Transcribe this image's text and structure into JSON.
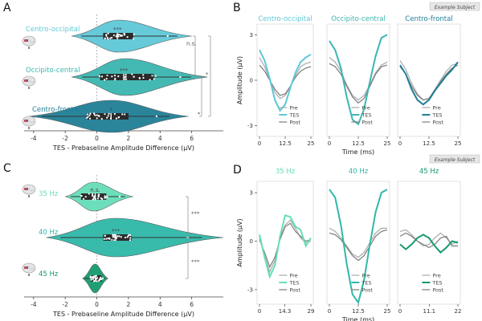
{
  "panel_letters": {
    "a": "A",
    "b": "B",
    "c": "C",
    "d": "D"
  },
  "example_badge": "Example Subject",
  "colors": {
    "centro_occipital": "#5ec8d8",
    "occipito_central": "#3bb6b0",
    "centro_frontal": "#1f7f96",
    "hz35": "#66ddb8",
    "hz40": "#2fb8a8",
    "hz45": "#159a6e",
    "pre": "#a9a9a9",
    "post": "#7b7b7b",
    "sig": "#666666"
  },
  "chart_data": [
    {
      "id": "A",
      "type": "violin",
      "xlabel": "TES - Prebaseline Amplitude Difference (µV)",
      "xlim": [
        -4.6,
        8.0
      ],
      "xticks": [
        -4,
        -2,
        0,
        2,
        4,
        6
      ],
      "groups": [
        {
          "name": "Centro-occipital",
          "color_key": "centro_occipital",
          "center": 1.4,
          "left": -1.6,
          "right": 6.0,
          "iqr": [
            0.4,
            2.3
          ],
          "median": 1.3,
          "sig": "***"
        },
        {
          "name": "Occipito-central",
          "color_key": "occipito_central",
          "center": 1.8,
          "left": -1.6,
          "right": 7.0,
          "iqr": [
            0.2,
            3.6
          ],
          "median": 1.7,
          "sig": "***"
        },
        {
          "name": "Centro-frontal",
          "color_key": "centro_frontal",
          "center": 1.0,
          "left": -4.3,
          "right": 5.8,
          "iqr": [
            -0.6,
            2.0
          ],
          "median": 0.9,
          "sig": "*"
        }
      ],
      "comparisons": [
        {
          "label": "n.s.",
          "from": 0,
          "to": 1
        },
        {
          "label": "*",
          "from": 0,
          "to": 2
        },
        {
          "label": "*",
          "from": 1,
          "to": 2
        }
      ]
    },
    {
      "id": "B",
      "type": "line",
      "xlabel": "Time (ms)",
      "ylabel": "Amplitude (µV)",
      "ylim": [
        -3.6,
        3.6
      ],
      "yticks": [
        -3,
        0,
        3
      ],
      "xticks": [
        0,
        12.5,
        25
      ],
      "xticklabels": [
        "0",
        "12.5",
        "25"
      ],
      "legend": [
        "Pre",
        "TES",
        "Post"
      ],
      "subplots": [
        {
          "title": "Centro-occipital",
          "color_key": "centro_occipital",
          "show_yticks": true,
          "x": [
            0,
            2.5,
            5,
            7.5,
            10,
            12.5,
            15,
            17.5,
            20,
            22.5,
            25
          ],
          "pre": [
            1.5,
            0.9,
            0.0,
            -0.8,
            -1.2,
            -1.0,
            -0.4,
            0.3,
            0.9,
            1.1,
            1.2
          ],
          "tes": [
            2.0,
            1.3,
            0.1,
            -1.3,
            -2.0,
            -1.6,
            -0.5,
            0.5,
            1.2,
            1.5,
            1.7
          ],
          "post": [
            1.0,
            0.6,
            0.0,
            -0.6,
            -1.0,
            -0.9,
            -0.4,
            0.2,
            0.6,
            0.8,
            0.9
          ]
        },
        {
          "title": "Occipito-central",
          "color_key": "occipito_central",
          "show_yticks": false,
          "x": [
            0,
            2.5,
            5,
            7.5,
            10,
            12.5,
            15,
            17.5,
            20,
            22.5,
            25
          ],
          "pre": [
            1.5,
            1.2,
            0.6,
            -0.3,
            -1.0,
            -1.3,
            -1.0,
            -0.3,
            0.5,
            1.0,
            1.2
          ],
          "tes": [
            2.6,
            2.0,
            0.8,
            -1.1,
            -2.6,
            -2.9,
            -1.9,
            -0.1,
            1.6,
            2.8,
            3.0
          ],
          "post": [
            1.1,
            0.9,
            0.4,
            -0.4,
            -1.1,
            -1.5,
            -1.2,
            -0.4,
            0.4,
            0.9,
            1.0
          ]
        },
        {
          "title": "Centro-frontal",
          "color_key": "centro_frontal",
          "show_yticks": false,
          "x": [
            0,
            2.5,
            5,
            7.5,
            10,
            12.5,
            15,
            17.5,
            20,
            22.5,
            25
          ],
          "pre": [
            1.3,
            0.7,
            -0.2,
            -0.9,
            -1.3,
            -1.2,
            -0.6,
            0.0,
            0.6,
            1.0,
            1.1
          ],
          "tes": [
            1.0,
            0.4,
            -0.6,
            -1.3,
            -1.6,
            -1.3,
            -0.7,
            -0.2,
            0.3,
            0.7,
            1.2
          ],
          "post": [
            0.9,
            0.4,
            -0.4,
            -1.0,
            -1.3,
            -1.2,
            -0.7,
            -0.1,
            0.4,
            0.8,
            1.0
          ]
        }
      ]
    },
    {
      "id": "C",
      "type": "violin",
      "xlabel": "TES - Prebaseline Amplitude Difference (µV)",
      "xlim": [
        -4.6,
        8.0
      ],
      "xticks": [
        -4,
        -2,
        0,
        2,
        4,
        6
      ],
      "groups": [
        {
          "name": "35 Hz",
          "color_key": "hz35",
          "center": -0.2,
          "left": -2.0,
          "right": 2.3,
          "iqr": [
            -1.0,
            0.6
          ],
          "median": -0.1,
          "sig": "n.s."
        },
        {
          "name": "40 Hz",
          "color_key": "hz40",
          "center": 1.2,
          "left": -3.2,
          "right": 8.0,
          "iqr": [
            0.4,
            2.2
          ],
          "median": 1.2,
          "sig": "***"
        },
        {
          "name": "45 Hz",
          "color_key": "hz45",
          "center": -0.1,
          "left": -0.9,
          "right": 0.7,
          "iqr": [
            -0.4,
            0.3
          ],
          "median": -0.1,
          "sig": ""
        }
      ],
      "comparisons": [
        {
          "label": "***",
          "from": 0,
          "to": 1
        },
        {
          "label": "***",
          "from": 1,
          "to": 2
        }
      ]
    },
    {
      "id": "D",
      "type": "line",
      "xlabel": "Time (ms)",
      "ylabel": "Amplitude (µV)",
      "ylim": [
        -3.8,
        3.6
      ],
      "yticks": [
        -3,
        0,
        3
      ],
      "legend": [
        "Pre",
        "TES",
        "Post"
      ],
      "subplots": [
        {
          "title": "35 Hz",
          "color_key": "hz35",
          "show_yticks": true,
          "xticks": [
            0,
            14.3,
            29
          ],
          "xticklabels": [
            "0",
            "14.3",
            "29"
          ],
          "x": [
            0,
            2.9,
            5.8,
            8.7,
            11.6,
            14.5,
            17.4,
            20.3,
            23.2,
            26.1,
            29
          ],
          "pre": [
            0.2,
            -0.9,
            -1.9,
            -1.2,
            0.2,
            1.0,
            1.3,
            0.8,
            0.2,
            -0.1,
            0.0
          ],
          "tes": [
            0.4,
            -1.0,
            -2.2,
            -1.5,
            0.3,
            1.6,
            1.5,
            0.9,
            0.7,
            -0.3,
            0.2
          ],
          "post": [
            0.1,
            -0.7,
            -1.6,
            -1.0,
            0.1,
            0.9,
            1.1,
            0.6,
            0.3,
            0.0,
            0.1
          ]
        },
        {
          "title": "40 Hz",
          "color_key": "hz40",
          "show_yticks": false,
          "xticks": [
            0,
            12.5,
            25
          ],
          "xticklabels": [
            "0",
            "12.5",
            "25"
          ],
          "x": [
            0,
            2.5,
            5,
            7.5,
            10,
            12.5,
            15,
            17.5,
            20,
            22.5,
            25
          ],
          "pre": [
            0.8,
            0.6,
            0.2,
            -0.3,
            -0.8,
            -1.0,
            -0.7,
            -0.1,
            0.5,
            0.8,
            0.8
          ],
          "tes": [
            3.2,
            2.7,
            1.0,
            -1.4,
            -3.3,
            -3.8,
            -2.4,
            -0.2,
            1.8,
            3.0,
            3.2
          ],
          "post": [
            0.5,
            0.4,
            0.1,
            -0.4,
            -0.9,
            -1.2,
            -0.9,
            -0.3,
            0.3,
            0.6,
            0.7
          ]
        },
        {
          "title": "45 Hz",
          "color_key": "hz45",
          "show_yticks": false,
          "xticks": [
            0,
            11.1,
            22
          ],
          "xticklabels": [
            "0",
            "11.1",
            "22"
          ],
          "x": [
            0,
            2.2,
            4.4,
            6.6,
            8.8,
            11.0,
            13.2,
            15.4,
            17.6,
            19.8,
            22
          ],
          "pre": [
            0.6,
            0.7,
            0.4,
            0.0,
            -0.3,
            -0.2,
            0.2,
            0.5,
            0.2,
            -0.2,
            0.0
          ],
          "tes": [
            -0.2,
            -0.5,
            -0.2,
            0.2,
            0.4,
            0.2,
            -0.3,
            -0.7,
            -0.4,
            0.0,
            -0.1
          ],
          "post": [
            0.3,
            0.5,
            0.3,
            0.0,
            -0.2,
            -0.4,
            -0.2,
            0.2,
            0.3,
            -0.3,
            -0.3
          ]
        }
      ]
    }
  ]
}
